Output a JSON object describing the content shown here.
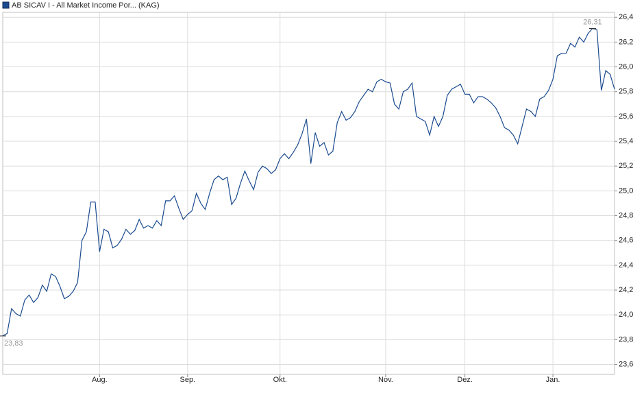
{
  "chart_data": {
    "type": "line",
    "series": [
      {
        "name": "AB SICAV I - All Market Income Por... (KAG)",
        "color": "#1a4a8f",
        "values": [
          23.83,
          23.85,
          24.05,
          24.01,
          23.99,
          24.12,
          24.16,
          24.1,
          24.14,
          24.24,
          24.19,
          24.33,
          24.31,
          24.23,
          24.13,
          24.15,
          24.19,
          24.26,
          24.6,
          24.67,
          24.91,
          24.91,
          24.51,
          24.69,
          24.67,
          24.54,
          24.56,
          24.61,
          24.69,
          24.65,
          24.68,
          24.77,
          24.7,
          24.72,
          24.7,
          24.76,
          24.72,
          24.92,
          24.92,
          24.96,
          24.86,
          24.77,
          24.81,
          24.84,
          24.98,
          24.9,
          24.85,
          24.98,
          25.09,
          25.12,
          25.09,
          25.11,
          24.89,
          24.94,
          25.06,
          25.16,
          25.08,
          25.01,
          25.15,
          25.2,
          25.18,
          25.14,
          25.17,
          25.26,
          25.3,
          25.26,
          25.31,
          25.37,
          25.46,
          25.58,
          25.22,
          25.47,
          25.36,
          25.39,
          25.29,
          25.32,
          25.55,
          25.64,
          25.57,
          25.59,
          25.64,
          25.72,
          25.77,
          25.82,
          25.8,
          25.88,
          25.9,
          25.88,
          25.87,
          25.7,
          25.66,
          25.8,
          25.82,
          25.87,
          25.6,
          25.58,
          25.56,
          25.45,
          25.6,
          25.52,
          25.6,
          25.77,
          25.82,
          25.84,
          25.86,
          25.78,
          25.78,
          25.71,
          25.76,
          25.76,
          25.74,
          25.71,
          25.67,
          25.6,
          25.51,
          25.49,
          25.45,
          25.38,
          25.52,
          25.66,
          25.64,
          25.6,
          25.74,
          25.76,
          25.81,
          25.9,
          26.09,
          26.11,
          26.11,
          26.19,
          26.16,
          26.24,
          26.2,
          26.27,
          26.31,
          26.3,
          25.81,
          25.97,
          25.94,
          25.82
        ]
      }
    ],
    "categories": [
      null,
      null,
      null,
      null,
      null,
      null,
      null,
      null,
      null,
      null,
      null,
      null,
      null,
      null,
      null,
      null,
      null,
      null,
      null,
      null,
      null,
      null,
      "Aug.",
      null,
      null,
      null,
      null,
      null,
      null,
      null,
      null,
      null,
      null,
      null,
      null,
      null,
      null,
      null,
      null,
      null,
      null,
      null,
      "Sep.",
      null,
      null,
      null,
      null,
      null,
      null,
      null,
      null,
      null,
      null,
      null,
      null,
      null,
      null,
      null,
      null,
      null,
      null,
      null,
      null,
      "Okt.",
      null,
      null,
      null,
      null,
      null,
      null,
      null,
      null,
      null,
      null,
      null,
      null,
      null,
      null,
      null,
      null,
      null,
      null,
      null,
      null,
      null,
      null,
      null,
      "Nov.",
      null,
      null,
      null,
      null,
      null,
      null,
      null,
      null,
      null,
      null,
      null,
      null,
      null,
      null,
      null,
      null,
      null,
      "Dez.",
      null,
      null,
      null,
      null,
      null,
      null,
      null,
      null,
      null,
      null,
      null,
      null,
      null,
      null,
      null,
      null,
      null,
      null,
      null,
      "Jan.",
      null,
      null,
      null,
      null,
      null,
      null,
      null,
      null,
      null,
      null,
      null,
      null,
      null,
      null
    ],
    "max_label": "26,31",
    "min_label": "23,83",
    "ylim": [
      23.52,
      26.44
    ],
    "yticks": [
      {
        "value": 23.6,
        "label": "23,6"
      },
      {
        "value": 23.8,
        "label": "23,8"
      },
      {
        "value": 24.0,
        "label": "24,0"
      },
      {
        "value": 24.2,
        "label": "24,2"
      },
      {
        "value": 24.4,
        "label": "24,4"
      },
      {
        "value": 24.6,
        "label": "24,6"
      },
      {
        "value": 24.8,
        "label": "24,8"
      },
      {
        "value": 25.0,
        "label": "25,0"
      },
      {
        "value": 25.2,
        "label": "25,2"
      },
      {
        "value": 25.4,
        "label": "25,4"
      },
      {
        "value": 25.6,
        "label": "25,6"
      },
      {
        "value": 25.8,
        "label": "25,8"
      },
      {
        "value": 26.0,
        "label": "26,0"
      },
      {
        "value": 26.2,
        "label": "26,2"
      },
      {
        "value": 26.4,
        "label": "26,4"
      }
    ],
    "grid": true
  }
}
